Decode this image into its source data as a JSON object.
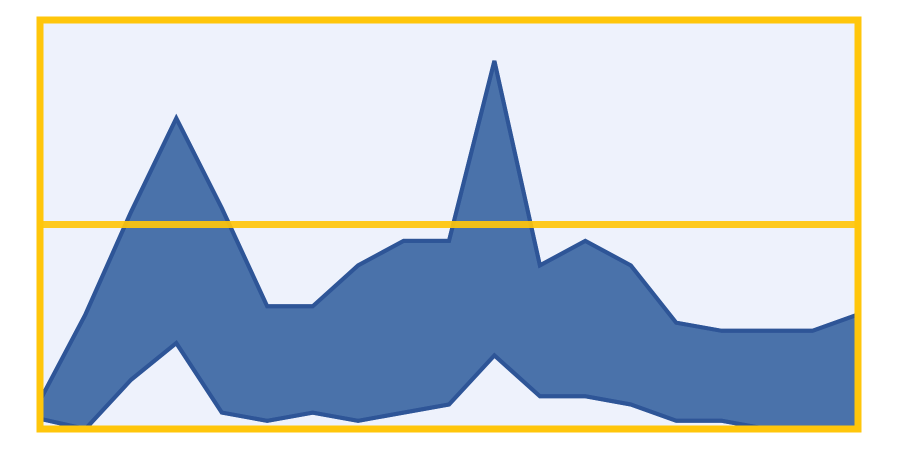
{
  "chart_data": {
    "type": "area",
    "title": "",
    "xlabel": "",
    "ylabel": "",
    "x": [
      0,
      1,
      2,
      3,
      4,
      5,
      6,
      7,
      8,
      9,
      10,
      11,
      12,
      13,
      14,
      15,
      16,
      17,
      18
    ],
    "series": [
      {
        "values": [
          0.25,
          0.0,
          1.2,
          2.1,
          0.4,
          0.2,
          0.4,
          0.2,
          0.4,
          0.6,
          1.8,
          0.8,
          0.8,
          0.6,
          0.2,
          0.2,
          0.0,
          0.0,
          0.0
        ]
      },
      {
        "values": [
          0.7,
          2.8,
          5.3,
          7.6,
          5.4,
          3.0,
          3.0,
          4.0,
          4.6,
          4.6,
          9.0,
          4.0,
          4.6,
          4.0,
          2.6,
          2.4,
          2.4,
          2.4,
          2.8
        ]
      }
    ],
    "upper": [
      0.7,
      2.8,
      5.3,
      7.6,
      5.4,
      3.0,
      3.0,
      4.0,
      4.6,
      4.6,
      9.0,
      4.0,
      4.6,
      4.0,
      2.6,
      2.4,
      2.4,
      2.4,
      2.8
    ],
    "lower": [
      0.25,
      0.0,
      1.2,
      2.1,
      0.4,
      0.2,
      0.4,
      0.2,
      0.4,
      0.6,
      1.8,
      0.8,
      0.8,
      0.6,
      0.2,
      0.2,
      0.0,
      0.0,
      0.0
    ],
    "ylim": [
      0,
      10
    ],
    "grid": true,
    "legend": "none",
    "colors": {
      "area_fill": "#4a72aa",
      "area_stroke": "#2e5597",
      "plot_background": "#eef2fc",
      "frame": "#ffc60b"
    }
  }
}
